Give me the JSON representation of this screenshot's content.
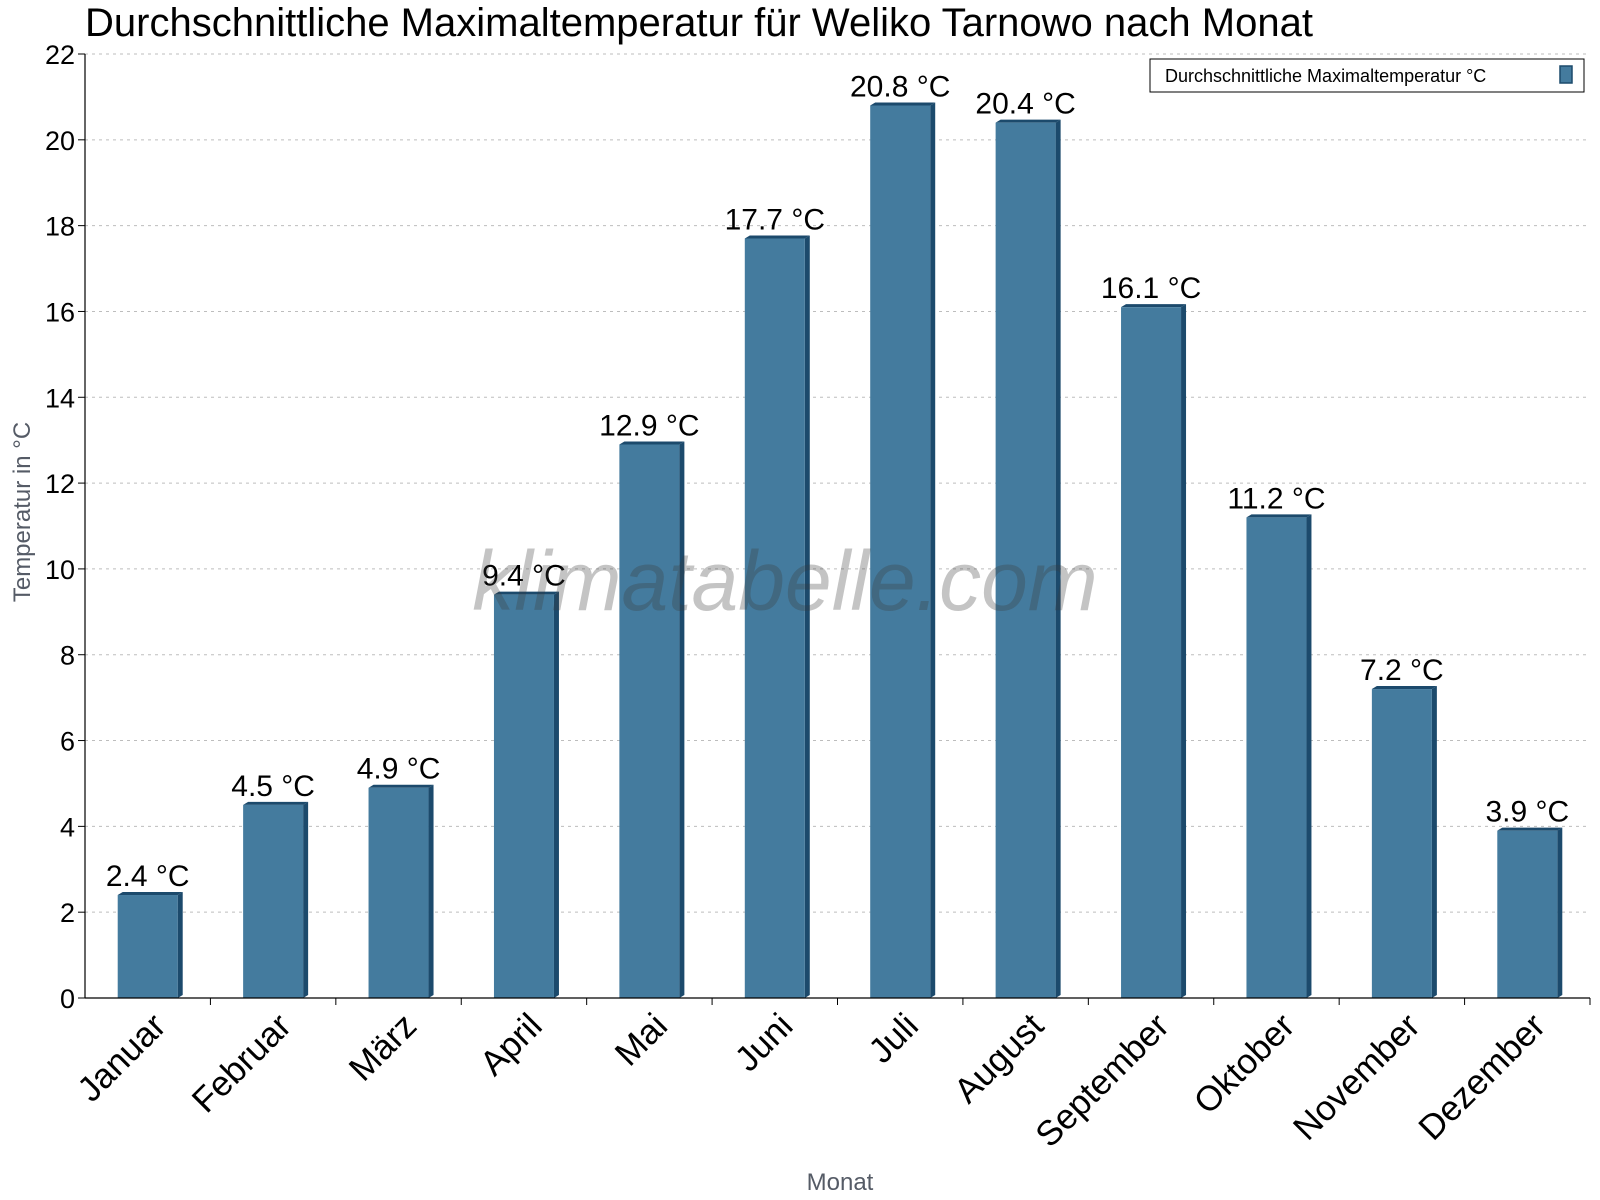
{
  "chart_data": {
    "type": "bar",
    "title": "Durchschnittliche Maximaltemperatur für Weliko Tarnowo nach Monat",
    "xlabel": "Monat",
    "ylabel": "Temperatur in °C",
    "categories": [
      "Januar",
      "Februar",
      "März",
      "April",
      "Mai",
      "Juni",
      "Juli",
      "August",
      "September",
      "Oktober",
      "November",
      "Dezember"
    ],
    "series": [
      {
        "name": "Durchschnittliche Maximaltemperatur °C",
        "values": [
          2.4,
          4.5,
          4.9,
          9.4,
          12.9,
          17.7,
          20.8,
          20.4,
          16.1,
          11.2,
          7.2,
          3.9
        ],
        "labels": [
          "2.4 °C",
          "4.5 °C",
          "4.9 °C",
          "9.4 °C",
          "12.9 °C",
          "17.7 °C",
          "20.8 °C",
          "20.4 °C",
          "16.1 °C",
          "11.2 °C",
          "7.2 °C",
          "3.9 °C"
        ]
      }
    ],
    "ylim": [
      0,
      22
    ],
    "yticks": [
      0,
      2,
      4,
      6,
      8,
      10,
      12,
      14,
      16,
      18,
      20,
      22
    ],
    "grid": true,
    "legend_position": "top-right",
    "colors": {
      "bar": "#447b9e",
      "bar_dark": "#1c4a6c"
    },
    "watermark": "klimatabelle.com"
  }
}
